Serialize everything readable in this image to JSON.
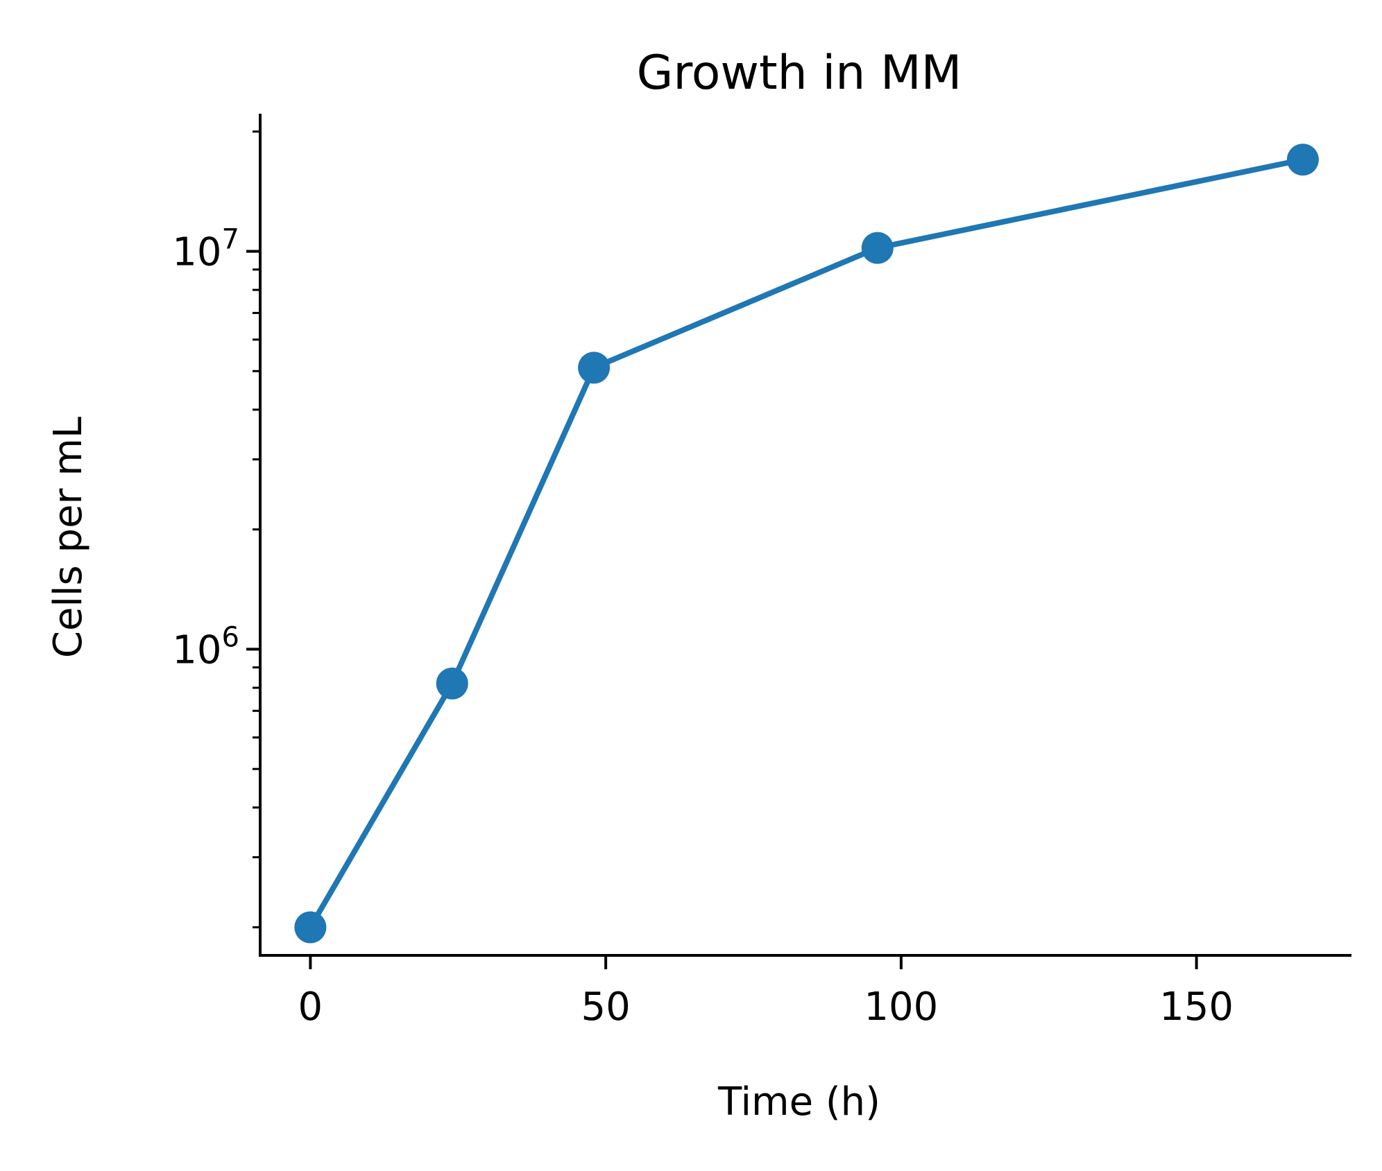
{
  "chart_data": {
    "type": "line",
    "title": "Growth in MM",
    "xlabel": "Time (h)",
    "ylabel": "Cells per mL",
    "y_scale": "log",
    "x_ticks": [
      0,
      50,
      100,
      150
    ],
    "y_ticks": [
      {
        "value": 1000000,
        "base": "10",
        "exponent": "6"
      },
      {
        "value": 10000000,
        "base": "10",
        "exponent": "7"
      }
    ],
    "xlim": [
      -8.5,
      176
    ],
    "ylim": [
      170000,
      22000000
    ],
    "grid": false,
    "legend": "none",
    "series": [
      {
        "color": "#1f77b4",
        "marker": "circle",
        "points": [
          {
            "x": 0,
            "y": 200000
          },
          {
            "x": 24,
            "y": 820000
          },
          {
            "x": 48,
            "y": 5100000
          },
          {
            "x": 96,
            "y": 10200000
          },
          {
            "x": 168,
            "y": 17000000
          }
        ]
      }
    ]
  }
}
